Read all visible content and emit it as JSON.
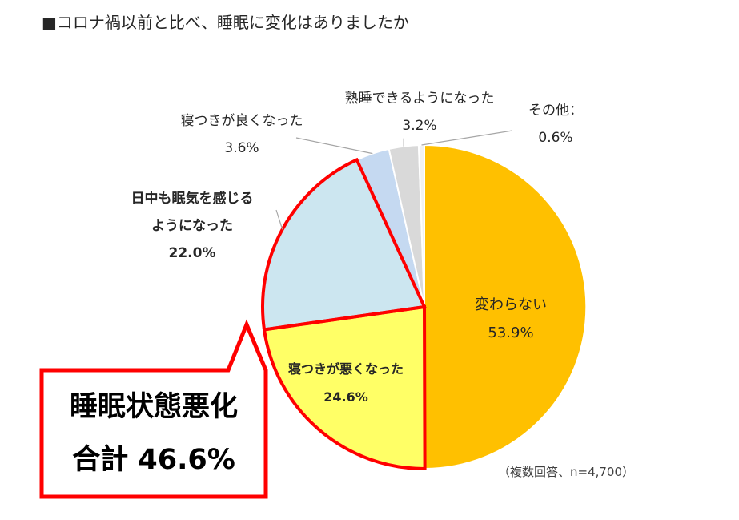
{
  "title": "■コロナ禍以前と比べ、睡眠に変化はありましたか",
  "note": "（複数回答、n=4,700）",
  "callout": {
    "line1": "睡眠状態悪化",
    "line2": "合計 46.6%"
  },
  "colors": {
    "highlight_border": "#ff0000",
    "leader": "#a6a6a6"
  },
  "chart_data": {
    "type": "pie",
    "start_angle_deg": 0,
    "direction": "clockwise",
    "slices": [
      {
        "label": [
          "変わらない"
        ],
        "value": 53.9,
        "value_label": "53.9%",
        "color": "#ffc000",
        "bold": false
      },
      {
        "label": [
          "寝つきが悪くなった"
        ],
        "value": 24.6,
        "value_label": "24.6%",
        "color": "#ffff66",
        "bold": true
      },
      {
        "label": [
          "日中も眠気を感じる",
          "ようになった"
        ],
        "value": 22.0,
        "value_label": "22.0%",
        "color": "#cce6f0",
        "bold": true
      },
      {
        "label": [
          "寝つきが良くなった"
        ],
        "value": 3.6,
        "value_label": "3.6%",
        "color": "#c5d9f1",
        "bold": false
      },
      {
        "label": [
          "熟睡できるようになった"
        ],
        "value": 3.2,
        "value_label": "3.2%",
        "color": "#d9d9d9",
        "bold": false
      },
      {
        "label": [
          "その他："
        ],
        "value": 0.6,
        "value_label": "0.6%",
        "color": "#f2f2f2",
        "bold": false
      }
    ],
    "highlighted_slices": [
      1,
      2
    ]
  }
}
